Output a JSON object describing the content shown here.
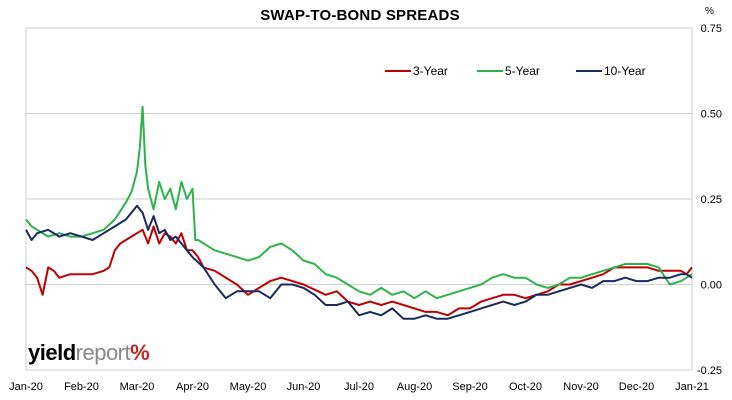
{
  "chart_data": {
    "type": "line",
    "title": "SWAP-TO-BOND SPREADS",
    "unit_label": "%",
    "xlabel": "",
    "ylabel": "",
    "x_tick_labels": [
      "Jan-20",
      "Feb-20",
      "Mar-20",
      "Apr-20",
      "May-20",
      "Jun-20",
      "Jul-20",
      "Aug-20",
      "Sep-20",
      "Oct-20",
      "Nov-20",
      "Dec-20",
      "Jan-21"
    ],
    "y_ticks": [
      -0.25,
      0.0,
      0.25,
      0.5,
      0.75
    ],
    "y_tick_labels": [
      "-0.25",
      "0.00",
      "0.25",
      "0.50",
      "0.75"
    ],
    "ylim": [
      -0.25,
      0.75
    ],
    "xlim": [
      0,
      12
    ],
    "grid": "horizontal",
    "legend_position": "top-right",
    "series": [
      {
        "name": "3-Year",
        "color": "#c00000",
        "x": [
          0,
          0.1,
          0.2,
          0.3,
          0.4,
          0.5,
          0.6,
          0.8,
          1.0,
          1.2,
          1.4,
          1.5,
          1.6,
          1.7,
          1.8,
          1.9,
          2.0,
          2.1,
          2.2,
          2.3,
          2.4,
          2.5,
          2.6,
          2.7,
          2.8,
          2.9,
          3.0,
          3.1,
          3.2,
          3.4,
          3.6,
          3.8,
          4.0,
          4.2,
          4.4,
          4.6,
          5.0,
          5.4,
          5.6,
          5.8,
          6.0,
          6.2,
          6.4,
          6.6,
          6.8,
          7.0,
          7.2,
          7.4,
          7.6,
          7.8,
          8.0,
          8.2,
          8.4,
          8.6,
          8.8,
          9.0,
          9.2,
          9.4,
          9.6,
          9.8,
          10.0,
          10.2,
          10.4,
          10.6,
          10.8,
          11.0,
          11.2,
          11.4,
          11.6,
          11.8,
          11.9,
          12.0
        ],
        "values": [
          0.05,
          0.04,
          0.02,
          -0.03,
          0.05,
          0.04,
          0.02,
          0.03,
          0.03,
          0.03,
          0.04,
          0.05,
          0.1,
          0.12,
          0.13,
          0.14,
          0.15,
          0.16,
          0.12,
          0.17,
          0.12,
          0.15,
          0.14,
          0.12,
          0.15,
          0.1,
          0.1,
          0.08,
          0.05,
          0.04,
          0.02,
          0.0,
          -0.03,
          -0.01,
          0.01,
          0.02,
          0.0,
          -0.03,
          -0.02,
          -0.05,
          -0.06,
          -0.05,
          -0.06,
          -0.05,
          -0.06,
          -0.07,
          -0.08,
          -0.08,
          -0.09,
          -0.07,
          -0.07,
          -0.05,
          -0.04,
          -0.03,
          -0.03,
          -0.04,
          -0.03,
          -0.02,
          0.0,
          0.0,
          0.01,
          0.02,
          0.03,
          0.05,
          0.05,
          0.05,
          0.05,
          0.04,
          0.04,
          0.04,
          0.03,
          0.05
        ]
      },
      {
        "name": "5-Year",
        "color": "#2db34a",
        "x": [
          0,
          0.1,
          0.2,
          0.4,
          0.6,
          0.8,
          1.0,
          1.2,
          1.4,
          1.6,
          1.8,
          1.9,
          2.0,
          2.05,
          2.1,
          2.15,
          2.2,
          2.3,
          2.4,
          2.5,
          2.6,
          2.7,
          2.8,
          2.9,
          3.0,
          3.05,
          3.1,
          3.2,
          3.4,
          3.6,
          3.8,
          4.0,
          4.2,
          4.4,
          4.6,
          4.8,
          5.0,
          5.2,
          5.4,
          5.6,
          5.8,
          6.0,
          6.2,
          6.4,
          6.6,
          6.8,
          7.0,
          7.2,
          7.4,
          7.6,
          7.8,
          8.0,
          8.2,
          8.4,
          8.6,
          8.8,
          9.0,
          9.2,
          9.4,
          9.6,
          9.8,
          10.0,
          10.2,
          10.4,
          10.6,
          10.8,
          11.0,
          11.2,
          11.4,
          11.6,
          11.8,
          11.9,
          12.0
        ],
        "values": [
          0.19,
          0.17,
          0.16,
          0.14,
          0.15,
          0.14,
          0.14,
          0.15,
          0.16,
          0.19,
          0.24,
          0.27,
          0.33,
          0.4,
          0.52,
          0.35,
          0.28,
          0.22,
          0.3,
          0.25,
          0.28,
          0.22,
          0.3,
          0.25,
          0.28,
          0.13,
          0.13,
          0.12,
          0.1,
          0.09,
          0.08,
          0.07,
          0.08,
          0.11,
          0.12,
          0.1,
          0.07,
          0.06,
          0.03,
          0.02,
          0.0,
          -0.02,
          -0.03,
          -0.01,
          -0.03,
          -0.02,
          -0.04,
          -0.02,
          -0.04,
          -0.03,
          -0.02,
          -0.01,
          0.0,
          0.02,
          0.03,
          0.02,
          0.02,
          0.0,
          -0.01,
          0.0,
          0.02,
          0.02,
          0.03,
          0.04,
          0.05,
          0.06,
          0.06,
          0.06,
          0.05,
          0.0,
          0.01,
          0.02,
          0.03
        ]
      },
      {
        "name": "10-Year",
        "color": "#1a2a5e",
        "x": [
          0,
          0.1,
          0.2,
          0.4,
          0.6,
          0.8,
          1.0,
          1.2,
          1.4,
          1.6,
          1.8,
          1.9,
          2.0,
          2.1,
          2.2,
          2.3,
          2.4,
          2.5,
          2.6,
          2.7,
          2.8,
          2.9,
          3.0,
          3.2,
          3.4,
          3.6,
          3.8,
          4.0,
          4.2,
          4.4,
          4.6,
          4.8,
          5.0,
          5.2,
          5.4,
          5.6,
          5.8,
          6.0,
          6.2,
          6.4,
          6.6,
          6.8,
          7.0,
          7.2,
          7.4,
          7.6,
          7.8,
          8.0,
          8.2,
          8.4,
          8.6,
          8.8,
          9.0,
          9.2,
          9.4,
          9.6,
          9.8,
          10.0,
          10.2,
          10.4,
          10.6,
          10.8,
          11.0,
          11.2,
          11.4,
          11.6,
          11.8,
          11.9,
          12.0
        ],
        "values": [
          0.16,
          0.13,
          0.15,
          0.16,
          0.14,
          0.15,
          0.14,
          0.13,
          0.15,
          0.17,
          0.19,
          0.21,
          0.23,
          0.21,
          0.16,
          0.2,
          0.15,
          0.16,
          0.13,
          0.14,
          0.12,
          0.1,
          0.08,
          0.05,
          0.0,
          -0.04,
          -0.02,
          -0.02,
          -0.02,
          -0.04,
          0.0,
          0.0,
          -0.01,
          -0.03,
          -0.06,
          -0.06,
          -0.05,
          -0.09,
          -0.08,
          -0.09,
          -0.07,
          -0.1,
          -0.1,
          -0.09,
          -0.1,
          -0.1,
          -0.09,
          -0.08,
          -0.07,
          -0.06,
          -0.05,
          -0.06,
          -0.05,
          -0.03,
          -0.03,
          -0.02,
          -0.01,
          0.0,
          -0.01,
          0.01,
          0.01,
          0.02,
          0.01,
          0.01,
          0.02,
          0.02,
          0.03,
          0.03,
          0.02
        ]
      }
    ]
  },
  "logo": {
    "part1": "yield",
    "part2": "report",
    "part3": "%"
  }
}
